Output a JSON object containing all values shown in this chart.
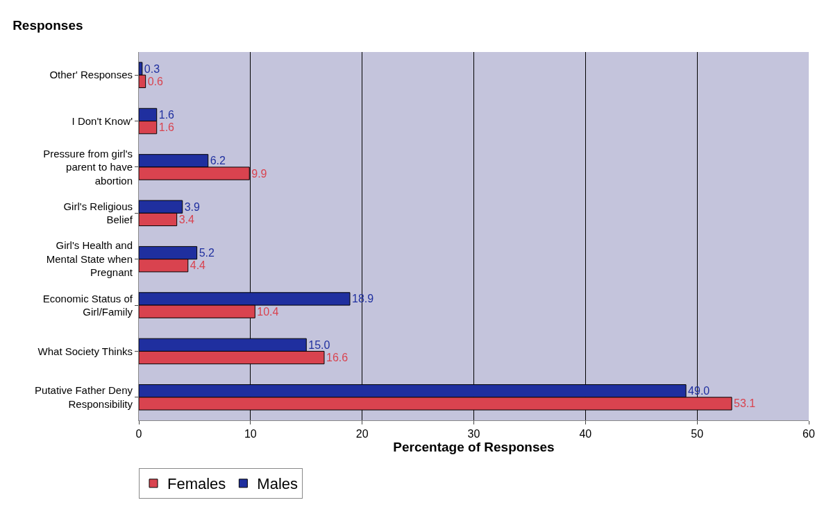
{
  "chart_data": {
    "type": "bar",
    "orientation": "horizontal",
    "title": "Responses",
    "xlabel": "Percentage of Responses",
    "categories": [
      "Other' Responses",
      "I Don't Know'",
      "Pressure from girl's parent to have abortion",
      "Girl's Religious Belief",
      "Girl's Health and Mental State when Pregnant",
      "Economic Status of Girl/Family",
      "What Society Thinks",
      "Putative Father Deny Responsibility"
    ],
    "series": [
      {
        "name": "Females",
        "color": "#d9434f",
        "values": [
          0.6,
          1.6,
          9.9,
          3.4,
          4.4,
          10.4,
          16.6,
          53.1
        ],
        "value_labels": [
          "0.6",
          "1.6",
          "9.9",
          "3.4",
          "4.4",
          "10.4",
          "16.6",
          "53.1"
        ]
      },
      {
        "name": "Males",
        "color": "#1f2f9f",
        "values": [
          0.3,
          1.6,
          6.2,
          3.9,
          5.2,
          18.9,
          15.0,
          49.0
        ],
        "value_labels": [
          "0.3",
          "1.6",
          "6.2",
          "3.9",
          "5.2",
          "18.9",
          "15.0",
          "49.0"
        ]
      }
    ],
    "xlim": [
      0,
      60
    ],
    "xticks": [
      0,
      10,
      20,
      30,
      40,
      50,
      60
    ],
    "grid": "x",
    "legend": "bottom left"
  }
}
